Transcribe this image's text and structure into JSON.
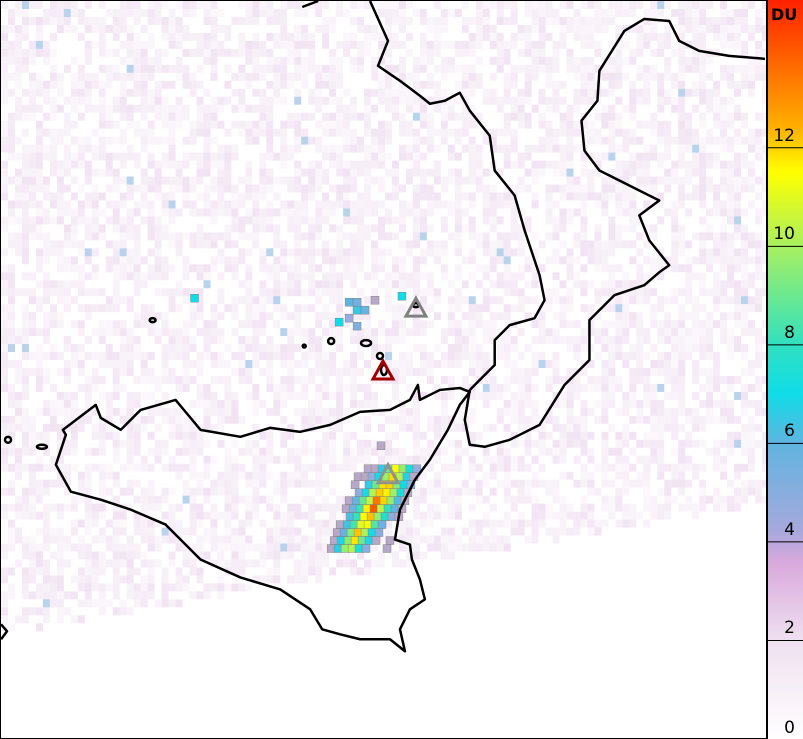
{
  "colorbar": {
    "unit": "DU",
    "min": 0,
    "max": 15,
    "ticks": [
      "0",
      "2",
      "4",
      "6",
      "8",
      "10",
      "12"
    ],
    "stops": [
      {
        "value": 0,
        "color": "#ffffff"
      },
      {
        "value": 2,
        "color": "#efe0f0"
      },
      {
        "value": 3.6,
        "color": "#d8a8dc"
      },
      {
        "value": 4.2,
        "color": "#a8a8dc"
      },
      {
        "value": 6,
        "color": "#60b4e0"
      },
      {
        "value": 7,
        "color": "#10dce8"
      },
      {
        "value": 8,
        "color": "#30e0c0"
      },
      {
        "value": 10,
        "color": "#a8f060"
      },
      {
        "value": 11.5,
        "color": "#ffff00"
      },
      {
        "value": 12.4,
        "color": "#ffb000"
      },
      {
        "value": 15,
        "color": "#ff2000"
      }
    ]
  },
  "markers": [
    {
      "name": "volcano-marker-stromboli",
      "color": "#808080"
    },
    {
      "name": "volcano-marker-vulcano",
      "color": "#a00000"
    },
    {
      "name": "volcano-marker-etna",
      "color": "#909090"
    }
  ],
  "colors": {
    "coastline": "#000000",
    "background": "#ffffff"
  }
}
